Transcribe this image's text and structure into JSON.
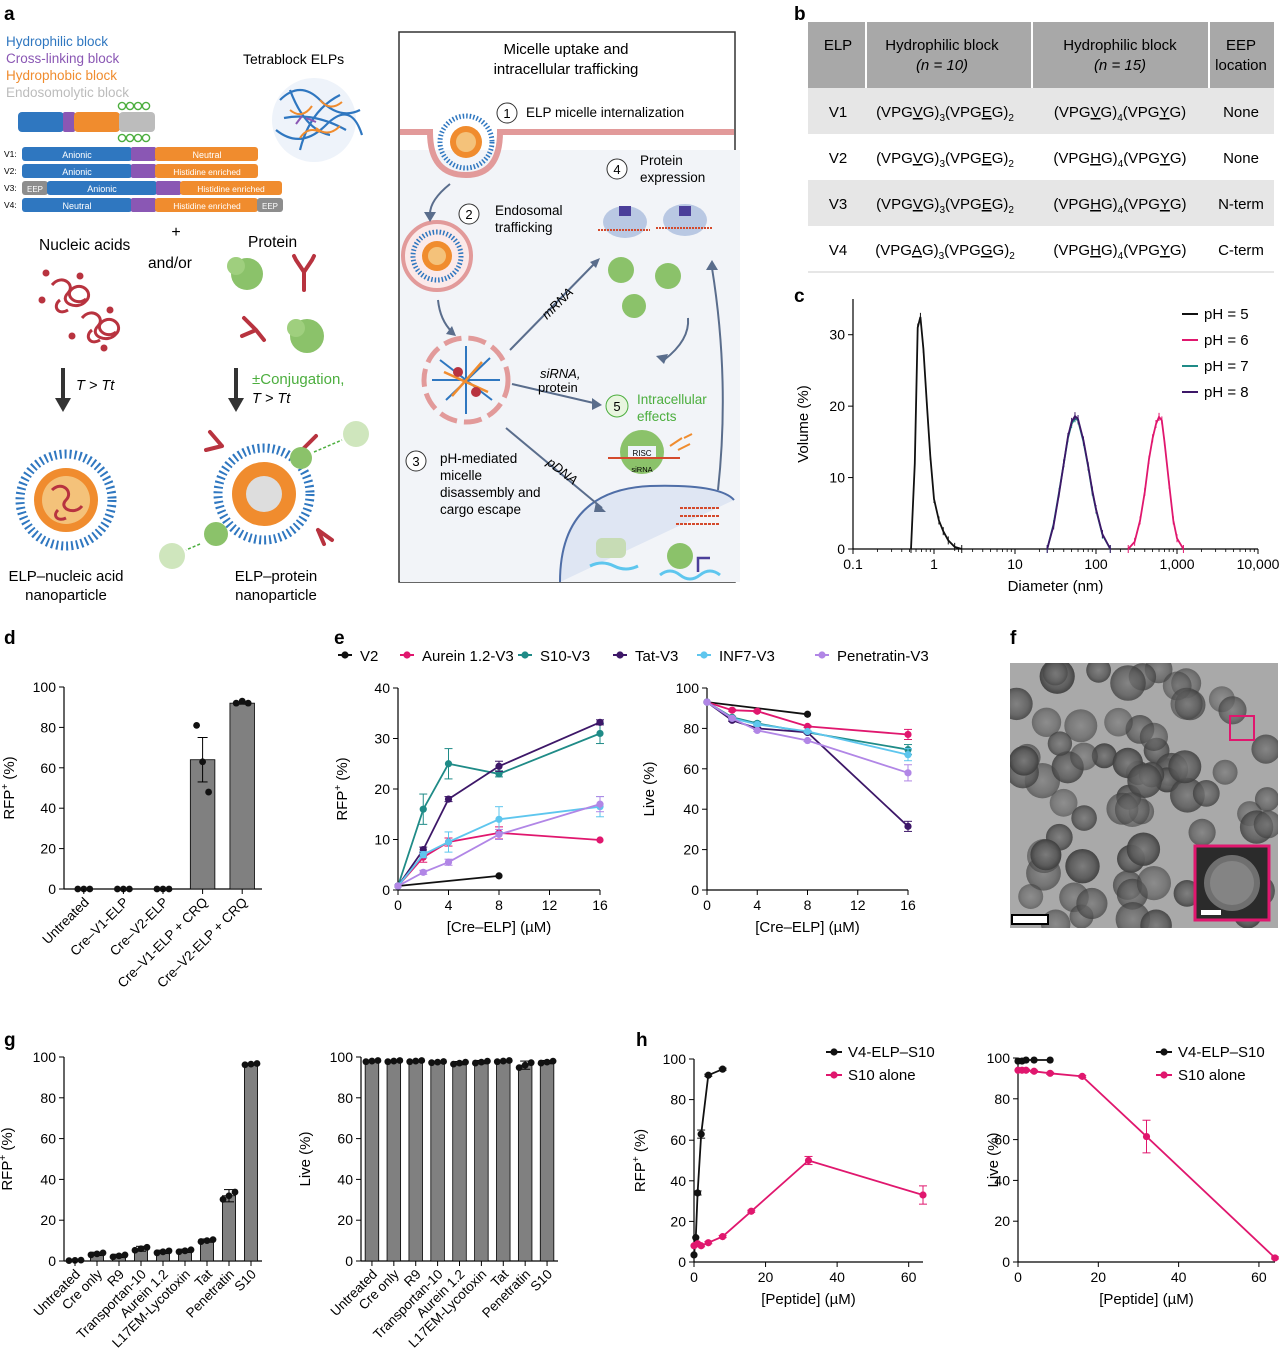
{
  "colors": {
    "black": "#111111",
    "magenta": "#e0176e",
    "teal": "#1f8b87",
    "purple": "#3d1768",
    "lightblue": "#5ec6ee",
    "lavender": "#b186e6",
    "blue_block": "#2f77c0",
    "violet_block": "#8a57b4",
    "orange_block": "#f08c2e",
    "grey_block": "#bcbcbc",
    "bar": "#808080",
    "table_header": "#a8a8a8",
    "table_row": "#e6e6e6",
    "green_protein": "#8bc26a",
    "red_nucleic": "#b8333f"
  },
  "panel_labels": {
    "a": "a",
    "b": "b",
    "c": "c",
    "d": "d",
    "e": "e",
    "f": "f",
    "g": "g",
    "h": "h"
  },
  "panel_a": {
    "legend": [
      "Hydrophilic block",
      "Cross-linking block",
      "Hydrophobic block",
      "Endosomolytic block"
    ],
    "tetrablock": "Tetrablock ELPs",
    "variants": [
      {
        "id": "V1:",
        "hydrophilic": "Anionic",
        "hydrophobic": "Neutral"
      },
      {
        "id": "V2:",
        "hydrophilic": "Anionic",
        "hydrophobic": "Histidine enriched"
      },
      {
        "id": "V3:",
        "eep": "EEP",
        "hydrophilic": "Anionic",
        "hydrophobic": "Histidine enriched"
      },
      {
        "id": "V4:",
        "hydrophilic": "Neutral",
        "hydrophobic": "Histidine enriched",
        "eep": "EEP"
      }
    ],
    "plus": "+",
    "and_or": "and/or",
    "nucleic_acids": "Nucleic acids",
    "protein": "Protein",
    "condition_left": "T > Tt",
    "conjugation": "±Conjugation,",
    "condition_right": "T > Tt",
    "np_left": [
      "ELP–nucleic acid",
      "nanoparticle"
    ],
    "np_right": [
      "ELP–protein",
      "nanoparticle"
    ],
    "box_title": [
      "Micelle uptake and",
      "intracellular trafficking"
    ],
    "steps": [
      {
        "n": "1",
        "text": [
          "ELP micelle internalization"
        ]
      },
      {
        "n": "2",
        "text": [
          "Endosomal",
          "trafficking"
        ]
      },
      {
        "n": "3",
        "text": [
          "pH-mediated",
          "micelle",
          "disassembly and",
          "cargo escape"
        ]
      },
      {
        "n": "4",
        "text": [
          "Protein",
          "expression"
        ]
      },
      {
        "n": "5",
        "text": [
          "Intracellular",
          "effects"
        ]
      }
    ],
    "arrows": {
      "mrna": "mRNA",
      "sirna": [
        "siRNA,",
        "protein"
      ],
      "pdna": "pDNA"
    },
    "risc": "RISC",
    "sirna_label": "siRNA"
  },
  "panel_b": {
    "headers": [
      "ELP",
      "Hydrophilic block",
      "(n = 10)",
      "Hydrophilic block",
      "(n = 15)",
      "EEP",
      "location"
    ],
    "rows": [
      {
        "elp": "V1",
        "n10": "(VPGVG)3(VPGEG)2",
        "n15": "(VPGVG)4(VPGYG)",
        "eep": "None"
      },
      {
        "elp": "V2",
        "n10": "(VPGVG)3(VPGEG)2",
        "n15": "(VPGHG)4(VPGYG)",
        "eep": "None"
      },
      {
        "elp": "V3",
        "n10": "(VPGVG)3(VPGEG)2",
        "n15": "(VPGHG)4(VPGYG)",
        "eep": "N-term"
      },
      {
        "elp": "V4",
        "n10": "(VPGAG)3(VPGGG)2",
        "n15": "(VPGHG)4(VPGYG)",
        "eep": "C-term"
      }
    ]
  },
  "chart_data": [
    {
      "id": "c",
      "type": "line",
      "x_scale": "log",
      "xlabel": "Diameter (nm)",
      "ylabel": "Volume (%)",
      "xlim": [
        0.1,
        10000
      ],
      "ylim": [
        0,
        35
      ],
      "xticks": [
        "0.1",
        "1",
        "10",
        "100",
        "1,000",
        "10,000"
      ],
      "yticks": [
        "0",
        "10",
        "20",
        "30"
      ],
      "legend": "top-right",
      "series": [
        {
          "name": "pH = 5",
          "color": "#111111",
          "x": [
            0.52,
            0.58,
            0.63,
            0.68,
            0.74,
            0.82,
            0.9,
            1.0,
            1.15,
            1.3,
            1.5,
            1.8,
            2.2
          ],
          "y": [
            0,
            12,
            31,
            32.5,
            28,
            20,
            13,
            7,
            4,
            2.5,
            1.2,
            0.3,
            0
          ]
        },
        {
          "name": "pH = 6",
          "color": "#e0176e",
          "x": [
            250,
            300,
            350,
            400,
            450,
            500,
            550,
            600,
            650,
            700,
            800,
            900,
            1000,
            1200
          ],
          "y": [
            0,
            1,
            4,
            8,
            12.5,
            15.5,
            17.5,
            18.5,
            18,
            15,
            9,
            4,
            1.5,
            0
          ]
        },
        {
          "name": "pH = 7",
          "color": "#1f8b87",
          "x": [
            25,
            30,
            35,
            40,
            45,
            50,
            55,
            60,
            70,
            80,
            90,
            100,
            120,
            150
          ],
          "y": [
            0,
            3.5,
            8,
            12,
            15.5,
            17.5,
            18.3,
            18,
            15,
            11.5,
            8,
            5.5,
            2,
            0
          ]
        },
        {
          "name": "pH = 8",
          "color": "#3d1768",
          "x": [
            25,
            30,
            35,
            40,
            45,
            50,
            55,
            60,
            70,
            80,
            90,
            100,
            120,
            150
          ],
          "y": [
            0,
            3.3,
            7.8,
            12,
            15.7,
            17.8,
            18.6,
            18.2,
            15.2,
            11.6,
            8.2,
            5.6,
            2.1,
            0
          ]
        }
      ]
    },
    {
      "id": "d",
      "type": "bar",
      "ylabel": "RFP+ (%)",
      "ylim": [
        0,
        100
      ],
      "yticks": [
        "0",
        "20",
        "40",
        "60",
        "80",
        "100"
      ],
      "categories": [
        "Untreated",
        "Cre–V1-ELP",
        "Cre–V2-ELP",
        "Cre–V1-ELP + CRQ",
        "Cre–V2-ELP + CRQ"
      ],
      "values": [
        0,
        0,
        0,
        64,
        92
      ],
      "errors": [
        0,
        0,
        0,
        11,
        0.5
      ],
      "points": [
        [
          0,
          0,
          0
        ],
        [
          0,
          0,
          0
        ],
        [
          0,
          0,
          0
        ],
        [
          81,
          63,
          48
        ],
        [
          92,
          93,
          92
        ]
      ]
    },
    {
      "id": "e-left",
      "type": "line",
      "xlabel": "[Cre–ELP] (µM)",
      "ylabel": "RFP+ (%)",
      "xlim": [
        0,
        16
      ],
      "ylim": [
        0,
        40
      ],
      "xticks": [
        "0",
        "4",
        "8",
        "12",
        "16"
      ],
      "yticks": [
        "0",
        "10",
        "20",
        "30",
        "40"
      ],
      "legend": "top",
      "series": [
        {
          "name": "V2",
          "color": "#111111",
          "x": [
            0,
            8
          ],
          "y": [
            0.8,
            2.8
          ],
          "err": [
            0,
            0
          ]
        },
        {
          "name": "Aurein 1.2-V3",
          "color": "#e0176e",
          "x": [
            0,
            2,
            4,
            8,
            16
          ],
          "y": [
            0.8,
            6.5,
            9.5,
            11.3,
            9.9
          ],
          "err": [
            0,
            1,
            0.8,
            1.2,
            0
          ]
        },
        {
          "name": "S10-V3",
          "color": "#1f8b87",
          "x": [
            0,
            2,
            4,
            8,
            16
          ],
          "y": [
            0.8,
            16,
            25,
            23,
            31
          ],
          "err": [
            0,
            3,
            3,
            0.6,
            2
          ]
        },
        {
          "name": "Tat-V3",
          "color": "#3d1768",
          "x": [
            0,
            2,
            4,
            8,
            16
          ],
          "y": [
            0.8,
            8,
            18,
            24.5,
            33.2
          ],
          "err": [
            0,
            0.5,
            0.5,
            1,
            0.5
          ]
        },
        {
          "name": "INF7-V3",
          "color": "#5ec6ee",
          "x": [
            0,
            2,
            4,
            8,
            16
          ],
          "y": [
            0.8,
            7,
            9.5,
            14,
            16.5
          ],
          "err": [
            0,
            0.6,
            2,
            2.5,
            2
          ]
        },
        {
          "name": "Penetratin-V3",
          "color": "#b186e6",
          "x": [
            0,
            2,
            4,
            8,
            16
          ],
          "y": [
            0.8,
            3.5,
            5.5,
            11,
            17
          ],
          "err": [
            0,
            0.4,
            0.6,
            1,
            1.5
          ]
        }
      ]
    },
    {
      "id": "e-right",
      "type": "line",
      "xlabel": "[Cre–ELP] (µM)",
      "ylabel": "Live (%)",
      "xlim": [
        0,
        16
      ],
      "ylim": [
        0,
        100
      ],
      "xticks": [
        "0",
        "4",
        "8",
        "12",
        "16"
      ],
      "yticks": [
        "0",
        "20",
        "40",
        "60",
        "80",
        "100"
      ],
      "series": [
        {
          "name": "V2",
          "color": "#111111",
          "x": [
            0,
            8
          ],
          "y": [
            93,
            87
          ],
          "err": [
            0,
            0
          ]
        },
        {
          "name": "Aurein 1.2-V3",
          "color": "#e0176e",
          "x": [
            0,
            2,
            4,
            8,
            16
          ],
          "y": [
            93,
            89,
            88.5,
            81,
            77
          ],
          "err": [
            0,
            0.5,
            0.5,
            0.5,
            2.5
          ]
        },
        {
          "name": "S10-V3",
          "color": "#1f8b87",
          "x": [
            0,
            2,
            4,
            8,
            16
          ],
          "y": [
            93,
            85.5,
            82.5,
            78,
            69.5
          ],
          "err": [
            0,
            0.5,
            0.8,
            0.5,
            2.5
          ]
        },
        {
          "name": "Tat-V3",
          "color": "#3d1768",
          "x": [
            0,
            2,
            4,
            8,
            16
          ],
          "y": [
            93,
            84,
            80,
            78,
            31.5
          ],
          "err": [
            0,
            0.5,
            0.5,
            0.5,
            2.5
          ]
        },
        {
          "name": "INF7-V3",
          "color": "#5ec6ee",
          "x": [
            0,
            2,
            4,
            8,
            16
          ],
          "y": [
            93,
            85,
            82,
            78.5,
            67
          ],
          "err": [
            0,
            0.5,
            0.5,
            0.5,
            3
          ]
        },
        {
          "name": "Penetratin-V3",
          "color": "#b186e6",
          "x": [
            0,
            2,
            4,
            8,
            16
          ],
          "y": [
            93,
            85,
            79,
            74,
            58
          ],
          "err": [
            0,
            0.5,
            0.5,
            0.5,
            4
          ]
        }
      ]
    },
    {
      "id": "g-left",
      "type": "bar",
      "ylabel": "RFP+ (%)",
      "ylim": [
        0,
        100
      ],
      "yticks": [
        "0",
        "20",
        "40",
        "60",
        "80",
        "100"
      ],
      "categories": [
        "Untreated",
        "Cre only",
        "R9",
        "Transportan-10",
        "Aurein 1.2",
        "L17EM-Lycotoxin",
        "Tat",
        "Penetratin",
        "S10"
      ],
      "values": [
        0.3,
        3.5,
        2.5,
        6,
        4.5,
        5,
        10,
        32,
        96.5
      ],
      "errors": [
        0.2,
        0.8,
        0.8,
        1.2,
        0.8,
        0.8,
        0.8,
        3,
        0.5
      ]
    },
    {
      "id": "g-right",
      "type": "bar",
      "ylabel": "Live (%)",
      "ylim": [
        0,
        100
      ],
      "yticks": [
        "0",
        "20",
        "40",
        "60",
        "80",
        "100"
      ],
      "categories": [
        "Untreated",
        "Cre only",
        "R9",
        "Transportan-10",
        "Aurein 1.2",
        "L17EM-Lycotoxin",
        "Tat",
        "Penetratin",
        "S10"
      ],
      "values": [
        98,
        98,
        98,
        97.5,
        97,
        97.5,
        98,
        96,
        97.5
      ],
      "errors": [
        0.5,
        0.5,
        0.5,
        0.5,
        0.8,
        0.8,
        0.5,
        2,
        0.8
      ]
    },
    {
      "id": "h-left",
      "type": "line",
      "xlabel": "[Peptide] (µM)",
      "ylabel": "RFP+ (%)",
      "xlim": [
        0,
        64
      ],
      "ylim": [
        0,
        100
      ],
      "xticks": [
        "0",
        "20",
        "40",
        "60"
      ],
      "yticks": [
        "0",
        "20",
        "40",
        "60",
        "80",
        "100"
      ],
      "legend": "top-right",
      "series": [
        {
          "name": "V4-ELP–S10",
          "color": "#111111",
          "x": [
            0,
            0.5,
            1,
            2,
            4,
            8
          ],
          "y": [
            3.5,
            12,
            34,
            63,
            92,
            95
          ],
          "err": [
            0,
            0,
            1,
            2,
            0.5,
            0.5
          ]
        },
        {
          "name": "S10 alone",
          "color": "#e0176e",
          "x": [
            0,
            1,
            2,
            4,
            8,
            16,
            32,
            64
          ],
          "y": [
            8,
            9,
            8,
            9.5,
            12.5,
            25,
            50,
            33
          ],
          "err": [
            0,
            0.5,
            0.5,
            0.5,
            0.5,
            0.5,
            2,
            4.5
          ]
        }
      ]
    },
    {
      "id": "h-right",
      "type": "line",
      "xlabel": "[Peptide] (µM)",
      "ylabel": "Live (%)",
      "xlim": [
        0,
        64
      ],
      "ylim": [
        0,
        100
      ],
      "xticks": [
        "0",
        "20",
        "40",
        "60"
      ],
      "yticks": [
        "0",
        "20",
        "40",
        "60",
        "80",
        "100"
      ],
      "legend": "top-right",
      "series": [
        {
          "name": "V4-ELP–S10",
          "color": "#111111",
          "x": [
            0,
            1,
            2,
            4,
            8
          ],
          "y": [
            98.5,
            98.5,
            99,
            99,
            99
          ],
          "err": [
            0,
            0,
            0,
            0,
            0
          ]
        },
        {
          "name": "S10 alone",
          "color": "#e0176e",
          "x": [
            0,
            1,
            2,
            4,
            8,
            16,
            32,
            64
          ],
          "y": [
            94,
            94,
            94,
            93.5,
            92.5,
            91,
            61.5,
            2
          ],
          "err": [
            0,
            0.5,
            0.5,
            0.5,
            0.5,
            0.5,
            8,
            0.5
          ]
        }
      ]
    }
  ]
}
